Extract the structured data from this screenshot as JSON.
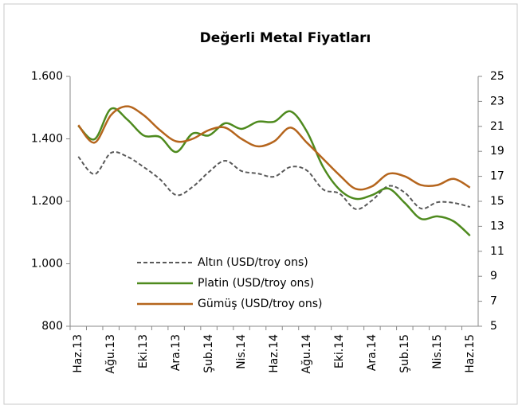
{
  "chart_data": {
    "type": "line",
    "title": "Değerli Metal Fiyatları",
    "categories": [
      "Haz.13",
      null,
      "Ağu.13",
      null,
      "Eki.13",
      null,
      "Ara.13",
      null,
      "Şub.14",
      null,
      "Nis.14",
      null,
      "Haz.14",
      null,
      "Ağu.14",
      null,
      "Eki.14",
      null,
      "Ara.14",
      null,
      "Şub.15",
      null,
      "Nis.15",
      null,
      "Haz.15"
    ],
    "series": [
      {
        "name": "Altın (USD/troy ons)",
        "color": "#595959",
        "dashed": true,
        "values": [
          1343,
          1287,
          1355,
          1343,
          1310,
          1271,
          1220,
          1246,
          1294,
          1330,
          1297,
          1289,
          1279,
          1310,
          1299,
          1238,
          1225,
          1175,
          1203,
          1249,
          1228,
          1177,
          1197,
          1195,
          1182
        ]
      },
      {
        "name": "Platin (USD/troy ons)",
        "color": "#4e8a1e",
        "values": [
          1442,
          1399,
          1496,
          1462,
          1411,
          1406,
          1358,
          1417,
          1411,
          1450,
          1432,
          1455,
          1455,
          1488,
          1424,
          1310,
          1238,
          1208,
          1220,
          1241,
          1195,
          1144,
          1152,
          1136,
          1090
        ]
      },
      {
        "name": "Gümüş (USD/troy ons)",
        "color": "#b5651d",
        "axis": "y2",
        "values": [
          21.1,
          19.7,
          21.9,
          22.6,
          21.9,
          20.7,
          19.8,
          20.0,
          20.7,
          20.9,
          20.0,
          19.4,
          19.8,
          20.9,
          19.7,
          18.4,
          17.1,
          16.0,
          16.2,
          17.2,
          17.0,
          16.3,
          16.3,
          16.8,
          16.1
        ]
      }
    ],
    "ylim": [
      800,
      1600
    ],
    "yticks": [
      800,
      {
        "value": 1000,
        "label": "1.000"
      },
      {
        "value": 1200,
        "label": "1.200"
      },
      {
        "value": 1400,
        "label": "1.400"
      },
      {
        "value": 1600,
        "label": "1.600"
      }
    ],
    "y2lim": [
      5,
      25
    ],
    "y2ticks": [
      5,
      7,
      9,
      11,
      13,
      15,
      17,
      19,
      21,
      23,
      25
    ],
    "grid": false,
    "legend": "lower-left"
  }
}
